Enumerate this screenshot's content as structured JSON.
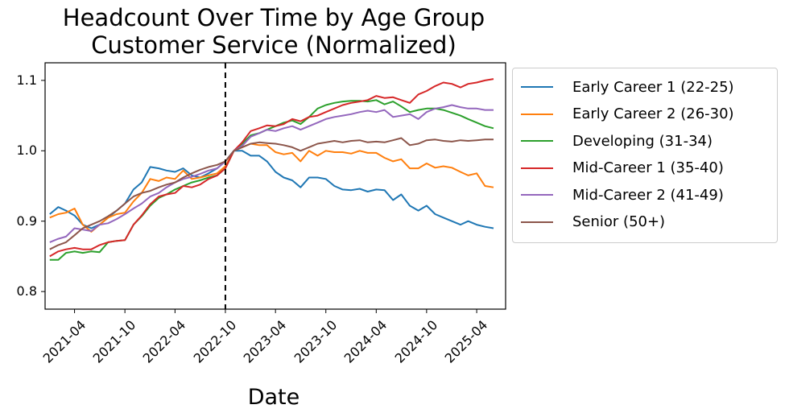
{
  "chart_data": {
    "type": "line",
    "title": "Headcount Over Time by Age Group",
    "subtitle": "Customer Service (Normalized)",
    "xlabel": "Date",
    "ylabel": "",
    "ylim": [
      0.775,
      1.125
    ],
    "xlim": [
      "2020-12-15",
      "2025-07-15"
    ],
    "yticks": [
      "0.8",
      "0.9",
      "1.0",
      "1.1"
    ],
    "ytick_values": [
      0.8,
      0.9,
      1.0,
      1.1
    ],
    "xticks": [
      "2021-04",
      "2021-10",
      "2022-04",
      "2022-10",
      "2023-04",
      "2023-10",
      "2024-04",
      "2024-10",
      "2025-04"
    ],
    "vline": "2022-10",
    "grid": false,
    "legend_position": "outside-right",
    "x": [
      "2021-01",
      "2021-02",
      "2021-03",
      "2021-04",
      "2021-05",
      "2021-06",
      "2021-07",
      "2021-08",
      "2021-09",
      "2021-10",
      "2021-11",
      "2021-12",
      "2022-01",
      "2022-02",
      "2022-03",
      "2022-04",
      "2022-05",
      "2022-06",
      "2022-07",
      "2022-08",
      "2022-09",
      "2022-10",
      "2022-11",
      "2022-12",
      "2023-01",
      "2023-02",
      "2023-03",
      "2023-04",
      "2023-05",
      "2023-06",
      "2023-07",
      "2023-08",
      "2023-09",
      "2023-10",
      "2023-11",
      "2023-12",
      "2024-01",
      "2024-02",
      "2024-03",
      "2024-04",
      "2024-05",
      "2024-06",
      "2024-07",
      "2024-08",
      "2024-09",
      "2024-10",
      "2024-11",
      "2024-12",
      "2025-01",
      "2025-02",
      "2025-03",
      "2025-04",
      "2025-05",
      "2025-06"
    ],
    "series": [
      {
        "name": "Early Career 1 (22-25)",
        "color": "#1f77b4",
        "values": [
          0.91,
          0.92,
          0.915,
          0.908,
          0.895,
          0.89,
          0.895,
          0.905,
          0.915,
          0.925,
          0.945,
          0.955,
          0.977,
          0.975,
          0.972,
          0.97,
          0.975,
          0.965,
          0.962,
          0.968,
          0.975,
          0.985,
          1.0,
          1.0,
          0.993,
          0.993,
          0.985,
          0.97,
          0.962,
          0.958,
          0.948,
          0.962,
          0.962,
          0.96,
          0.95,
          0.945,
          0.944,
          0.946,
          0.942,
          0.945,
          0.944,
          0.93,
          0.938,
          0.922,
          0.915,
          0.922,
          0.91,
          0.905,
          0.9,
          0.895,
          0.9,
          0.895,
          0.892,
          0.89
        ]
      },
      {
        "name": "Early Career 2 (26-30)",
        "color": "#ff7f0e",
        "values": [
          0.905,
          0.91,
          0.912,
          0.918,
          0.895,
          0.885,
          0.895,
          0.905,
          0.91,
          0.912,
          0.928,
          0.94,
          0.96,
          0.957,
          0.962,
          0.96,
          0.972,
          0.96,
          0.962,
          0.965,
          0.968,
          0.978,
          1.0,
          1.005,
          1.01,
          1.008,
          1.008,
          0.998,
          0.995,
          0.997,
          0.985,
          1.0,
          0.993,
          1.0,
          0.998,
          0.998,
          0.996,
          1.0,
          0.997,
          0.997,
          0.99,
          0.985,
          0.988,
          0.975,
          0.975,
          0.982,
          0.976,
          0.978,
          0.976,
          0.97,
          0.965,
          0.968,
          0.95,
          0.948
        ]
      },
      {
        "name": "Developing (31-34)",
        "color": "#2ca02c",
        "values": [
          0.845,
          0.845,
          0.855,
          0.857,
          0.855,
          0.857,
          0.856,
          0.87,
          0.872,
          0.873,
          0.895,
          0.907,
          0.922,
          0.933,
          0.938,
          0.945,
          0.95,
          0.955,
          0.958,
          0.962,
          0.965,
          0.975,
          1.0,
          1.01,
          1.022,
          1.025,
          1.03,
          1.035,
          1.04,
          1.043,
          1.038,
          1.048,
          1.06,
          1.065,
          1.068,
          1.07,
          1.071,
          1.071,
          1.07,
          1.072,
          1.066,
          1.07,
          1.063,
          1.055,
          1.058,
          1.06,
          1.06,
          1.058,
          1.054,
          1.05,
          1.045,
          1.04,
          1.035,
          1.032
        ]
      },
      {
        "name": "Mid-Career 1 (35-40)",
        "color": "#d62728",
        "values": [
          0.85,
          0.857,
          0.86,
          0.862,
          0.86,
          0.86,
          0.866,
          0.87,
          0.872,
          0.873,
          0.895,
          0.908,
          0.924,
          0.935,
          0.938,
          0.94,
          0.95,
          0.948,
          0.952,
          0.96,
          0.965,
          0.975,
          1.0,
          1.012,
          1.028,
          1.032,
          1.036,
          1.035,
          1.038,
          1.045,
          1.042,
          1.048,
          1.05,
          1.055,
          1.06,
          1.065,
          1.068,
          1.07,
          1.072,
          1.078,
          1.075,
          1.076,
          1.072,
          1.068,
          1.08,
          1.085,
          1.092,
          1.097,
          1.095,
          1.09,
          1.095,
          1.097,
          1.1,
          1.102
        ]
      },
      {
        "name": "Mid-Career 2 (41-49)",
        "color": "#9467bd",
        "values": [
          0.87,
          0.875,
          0.878,
          0.89,
          0.888,
          0.886,
          0.895,
          0.897,
          0.903,
          0.91,
          0.918,
          0.925,
          0.935,
          0.94,
          0.948,
          0.955,
          0.96,
          0.963,
          0.967,
          0.972,
          0.975,
          0.985,
          1.0,
          1.007,
          1.02,
          1.025,
          1.03,
          1.028,
          1.032,
          1.035,
          1.03,
          1.035,
          1.04,
          1.045,
          1.048,
          1.05,
          1.052,
          1.055,
          1.057,
          1.055,
          1.058,
          1.048,
          1.05,
          1.052,
          1.045,
          1.055,
          1.06,
          1.062,
          1.065,
          1.062,
          1.06,
          1.06,
          1.058,
          1.058
        ]
      },
      {
        "name": "Senior (50+)",
        "color": "#8c564b",
        "values": [
          0.86,
          0.866,
          0.87,
          0.88,
          0.89,
          0.895,
          0.9,
          0.907,
          0.915,
          0.925,
          0.935,
          0.94,
          0.943,
          0.948,
          0.952,
          0.955,
          0.962,
          0.968,
          0.973,
          0.977,
          0.98,
          0.985,
          1.0,
          1.005,
          1.01,
          1.012,
          1.011,
          1.01,
          1.008,
          1.005,
          1.0,
          1.005,
          1.01,
          1.012,
          1.014,
          1.012,
          1.014,
          1.015,
          1.012,
          1.013,
          1.012,
          1.015,
          1.018,
          1.008,
          1.01,
          1.015,
          1.016,
          1.014,
          1.013,
          1.015,
          1.014,
          1.015,
          1.016,
          1.016
        ]
      }
    ]
  }
}
